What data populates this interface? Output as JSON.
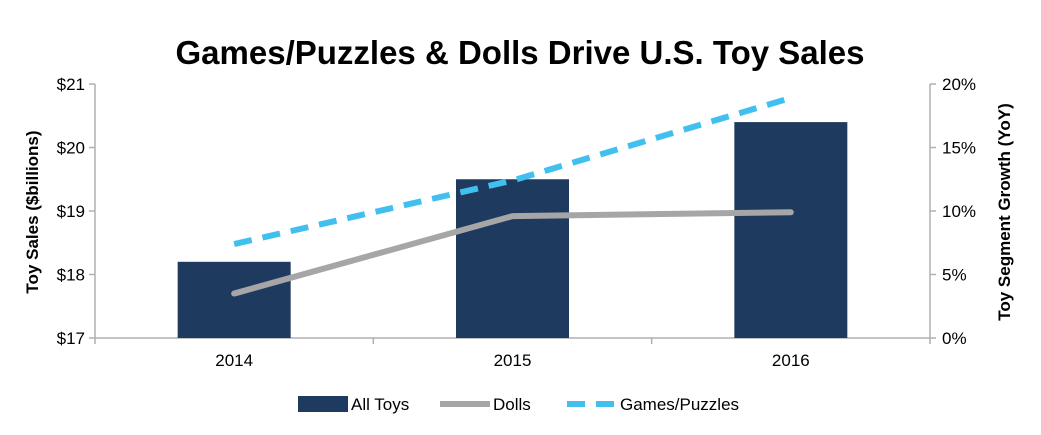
{
  "chart_data": {
    "type": "bar",
    "title": "Games/Puzzles & Dolls Drive U.S. Toy Sales",
    "categories": [
      "2014",
      "2015",
      "2016"
    ],
    "ylabel": "Toy Sales ($billions)",
    "y2label": "Toy Segment Growth (YoY)",
    "ylim": [
      17,
      21
    ],
    "y2lim": [
      0,
      20
    ],
    "y_ticks": [
      "$17",
      "$18",
      "$19",
      "$20",
      "$21"
    ],
    "y2_ticks": [
      "0%",
      "5%",
      "10%",
      "15%",
      "20%"
    ],
    "grid": false,
    "legend_position": "bottom",
    "series": [
      {
        "name": "All Toys",
        "type": "bar",
        "axis": "left",
        "values": [
          18.2,
          19.5,
          20.4
        ],
        "color": "#1f3a5f"
      },
      {
        "name": "Dolls",
        "type": "line",
        "axis": "right",
        "style": "solid",
        "values": [
          3.5,
          9.6,
          9.9
        ],
        "color": "#a6a6a6"
      },
      {
        "name": "Games/Puzzles",
        "type": "line",
        "axis": "right",
        "style": "dashed",
        "values": [
          7.4,
          12.4,
          18.9
        ],
        "color": "#41c0ef"
      }
    ]
  }
}
